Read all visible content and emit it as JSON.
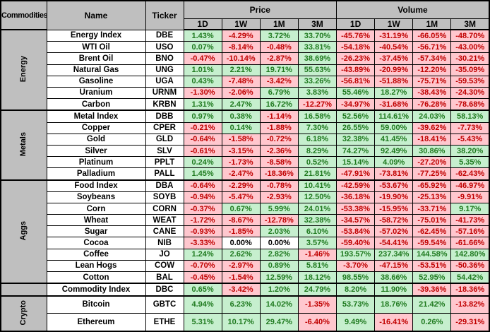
{
  "colors": {
    "header_bg": "#bfbfbf",
    "positive_bg": "#c6efce",
    "positive_text": "#1f7a1f",
    "negative_bg": "#ffc7ce",
    "negative_text": "#c00000",
    "neutral_bg": "#ffffff",
    "neutral_text": "#000000",
    "border": "#000000"
  },
  "chart_data": {
    "type": "table",
    "title": "Commodities",
    "corner_label": "Commodities",
    "headers": {
      "name": "Name",
      "ticker": "Ticker",
      "price": "Price",
      "volume": "Volume",
      "periods": [
        "1D",
        "1W",
        "1M",
        "3M"
      ]
    },
    "groups": [
      {
        "label": "Energy",
        "rows": [
          {
            "name": "Energy Index",
            "ticker": "DBE",
            "price": [
              "1.43%",
              "-4.29%",
              "3.72%",
              "33.70%"
            ],
            "volume": [
              "-45.76%",
              "-31.19%",
              "-66.05%",
              "-48.70%"
            ]
          },
          {
            "name": "WTI Oil",
            "ticker": "USO",
            "price": [
              "0.07%",
              "-8.14%",
              "-0.48%",
              "33.81%"
            ],
            "volume": [
              "-54.18%",
              "-40.54%",
              "-56.71%",
              "-43.00%"
            ]
          },
          {
            "name": "Brent Oil",
            "ticker": "BNO",
            "price": [
              "-0.47%",
              "-10.14%",
              "-2.87%",
              "38.69%"
            ],
            "volume": [
              "-26.23%",
              "-37.45%",
              "-57.34%",
              "-30.21%"
            ]
          },
          {
            "name": "Natural Gas",
            "ticker": "UNG",
            "price": [
              "1.01%",
              "2.21%",
              "19.71%",
              "55.63%"
            ],
            "volume": [
              "-43.89%",
              "-20.99%",
              "-12.20%",
              "-35.09%"
            ]
          },
          {
            "name": "Gasoline",
            "ticker": "UGA",
            "price": [
              "0.43%",
              "-7.48%",
              "-3.42%",
              "33.26%"
            ],
            "volume": [
              "-56.81%",
              "-51.88%",
              "-75.71%",
              "-59.53%"
            ]
          },
          {
            "name": "Uranium",
            "ticker": "URNM",
            "price": [
              "-1.30%",
              "-2.06%",
              "6.79%",
              "3.83%"
            ],
            "volume": [
              "55.46%",
              "18.27%",
              "-38.43%",
              "-24.30%"
            ]
          },
          {
            "name": "Carbon",
            "ticker": "KRBN",
            "price": [
              "1.31%",
              "2.47%",
              "16.72%",
              "-12.27%"
            ],
            "volume": [
              "-34.97%",
              "-31.68%",
              "-76.28%",
              "-78.68%"
            ]
          }
        ]
      },
      {
        "label": "Metals",
        "rows": [
          {
            "name": "Metal Index",
            "ticker": "DBB",
            "price": [
              "0.97%",
              "0.38%",
              "-1.14%",
              "16.58%"
            ],
            "volume": [
              "52.56%",
              "114.61%",
              "24.03%",
              "58.13%"
            ]
          },
          {
            "name": "Copper",
            "ticker": "CPER",
            "price": [
              "-0.21%",
              "0.14%",
              "-1.88%",
              "7.30%"
            ],
            "volume": [
              "26.55%",
              "59.00%",
              "-39.62%",
              "-7.73%"
            ]
          },
          {
            "name": "Gold",
            "ticker": "GLD",
            "price": [
              "-0.64%",
              "-1.58%",
              "-0.72%",
              "6.18%"
            ],
            "volume": [
              "32.38%",
              "41.45%",
              "-18.41%",
              "-5.43%"
            ]
          },
          {
            "name": "Silver",
            "ticker": "SLV",
            "price": [
              "-0.61%",
              "-3.15%",
              "-2.36%",
              "8.29%"
            ],
            "volume": [
              "74.27%",
              "92.49%",
              "30.86%",
              "38.20%"
            ]
          },
          {
            "name": "Platinum",
            "ticker": "PPLT",
            "price": [
              "0.24%",
              "-1.73%",
              "-8.58%",
              "0.52%"
            ],
            "volume": [
              "15.14%",
              "4.09%",
              "-27.20%",
              "5.35%"
            ]
          },
          {
            "name": "Palladium",
            "ticker": "PALL",
            "price": [
              "1.45%",
              "-2.47%",
              "-18.36%",
              "21.81%"
            ],
            "volume": [
              "-47.91%",
              "-73.81%",
              "-77.25%",
              "-62.43%"
            ]
          }
        ]
      },
      {
        "label": "Aggs",
        "rows": [
          {
            "name": "Food Index",
            "ticker": "DBA",
            "price": [
              "-0.64%",
              "-2.29%",
              "-0.78%",
              "10.41%"
            ],
            "volume": [
              "-42.59%",
              "-53.67%",
              "-65.92%",
              "-46.97%"
            ]
          },
          {
            "name": "Soybeans",
            "ticker": "SOYB",
            "price": [
              "-0.94%",
              "-5.47%",
              "-2.93%",
              "12.50%"
            ],
            "volume": [
              "-36.18%",
              "-19.90%",
              "-25.13%",
              "-9.91%"
            ]
          },
          {
            "name": "Corn",
            "ticker": "CORN",
            "price": [
              "-0.37%",
              "0.67%",
              "5.99%",
              "24.01%"
            ],
            "volume": [
              "-53.38%",
              "-15.95%",
              "-33.71%",
              "9.17%"
            ]
          },
          {
            "name": "Wheat",
            "ticker": "WEAT",
            "price": [
              "-1.72%",
              "-8.67%",
              "-12.78%",
              "32.38%"
            ],
            "volume": [
              "-34.57%",
              "-58.72%",
              "-75.01%",
              "-41.73%"
            ]
          },
          {
            "name": "Sugar",
            "ticker": "CANE",
            "price": [
              "-0.93%",
              "-1.85%",
              "2.03%",
              "6.10%"
            ],
            "volume": [
              "-53.84%",
              "-57.02%",
              "-62.45%",
              "-57.16%"
            ]
          },
          {
            "name": "Cocoa",
            "ticker": "NIB",
            "price": [
              "-3.33%",
              "0.00%",
              "0.00%",
              "3.57%"
            ],
            "volume": [
              "-59.40%",
              "-54.41%",
              "-59.54%",
              "-61.66%"
            ]
          },
          {
            "name": "Coffee",
            "ticker": "JO",
            "price": [
              "1.24%",
              "2.62%",
              "2.82%",
              "-1.46%"
            ],
            "volume": [
              "193.57%",
              "237.34%",
              "144.58%",
              "142.80%"
            ]
          },
          {
            "name": "Lean Hogs",
            "ticker": "COW",
            "price": [
              "-0.70%",
              "-2.97%",
              "0.89%",
              "5.81%"
            ],
            "volume": [
              "-3.70%",
              "-47.15%",
              "-53.51%",
              "-50.36%"
            ]
          },
          {
            "name": "Cotton",
            "ticker": "BAL",
            "price": [
              "-0.45%",
              "-1.54%",
              "12.59%",
              "18.12%"
            ],
            "volume": [
              "98.55%",
              "38.66%",
              "52.95%",
              "54.42%"
            ]
          }
        ]
      },
      {
        "label": "",
        "rows": [
          {
            "name": "Commodity Index",
            "ticker": "DBC",
            "price": [
              "0.65%",
              "-3.42%",
              "1.20%",
              "24.79%"
            ],
            "volume": [
              "8.20%",
              "11.90%",
              "-39.36%",
              "-18.36%"
            ]
          }
        ]
      },
      {
        "label": "Crypto",
        "rows": [
          {
            "name": "Bitcoin",
            "ticker": "GBTC",
            "price": [
              "4.94%",
              "6.23%",
              "14.02%",
              "-1.35%"
            ],
            "volume": [
              "53.73%",
              "18.76%",
              "21.42%",
              "-13.82%"
            ]
          },
          {
            "name": "Ethereum",
            "ticker": "ETHE",
            "price": [
              "5.31%",
              "10.17%",
              "29.47%",
              "-6.40%"
            ],
            "volume": [
              "9.49%",
              "-16.41%",
              "0.26%",
              "-29.31%"
            ]
          }
        ]
      }
    ]
  }
}
